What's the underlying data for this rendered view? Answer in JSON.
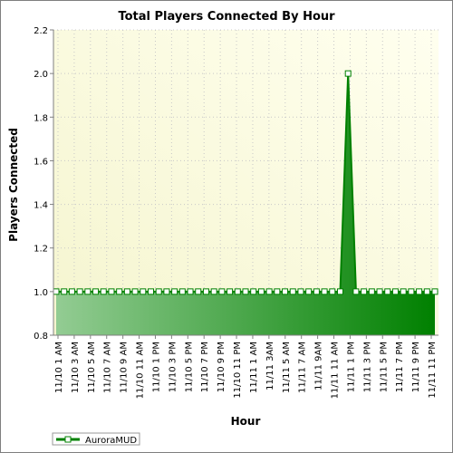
{
  "chart_data": {
    "type": "area",
    "title": "Total Players Connected By Hour",
    "xlabel": "Hour",
    "ylabel": "Players Connected",
    "ylim": [
      0.8,
      2.2
    ],
    "yticks": [
      "0.8",
      "1.0",
      "1.2",
      "1.4",
      "1.6",
      "1.8",
      "2.0",
      "2.2"
    ],
    "grid": true,
    "legend": "bottom-left",
    "x_tick_labels": [
      "11/10 1 AM",
      "11/10 3 AM",
      "11/10 5 AM",
      "11/10 7 AM",
      "11/10 9 AM",
      "11/10 11 AM",
      "11/10 1 PM",
      "11/10 3 PM",
      "11/10 5 PM",
      "11/10 7 PM",
      "11/10 9 PM",
      "11/10 11 PM",
      "11/11 1 AM",
      "11/11 3AM",
      "11/11 5 AM",
      "11/11 7 AM",
      "11/11 9AM",
      "11/11 11 AM",
      "11/11 1 PM",
      "11/11 3 PM",
      "11/11 5 PM",
      "11/11 7 PM",
      "11/11 9 PM",
      "11/11 11 PM"
    ],
    "series": [
      {
        "name": "AuroraMUD",
        "color": "#008000",
        "values": [
          1,
          1,
          1,
          1,
          1,
          1,
          1,
          1,
          1,
          1,
          1,
          1,
          1,
          1,
          1,
          1,
          1,
          1,
          1,
          1,
          1,
          1,
          1,
          1,
          1,
          1,
          1,
          1,
          1,
          1,
          1,
          1,
          1,
          1,
          1,
          1,
          1,
          2,
          1,
          1,
          1,
          1,
          1,
          1,
          1,
          1,
          1,
          1,
          1
        ]
      }
    ]
  }
}
